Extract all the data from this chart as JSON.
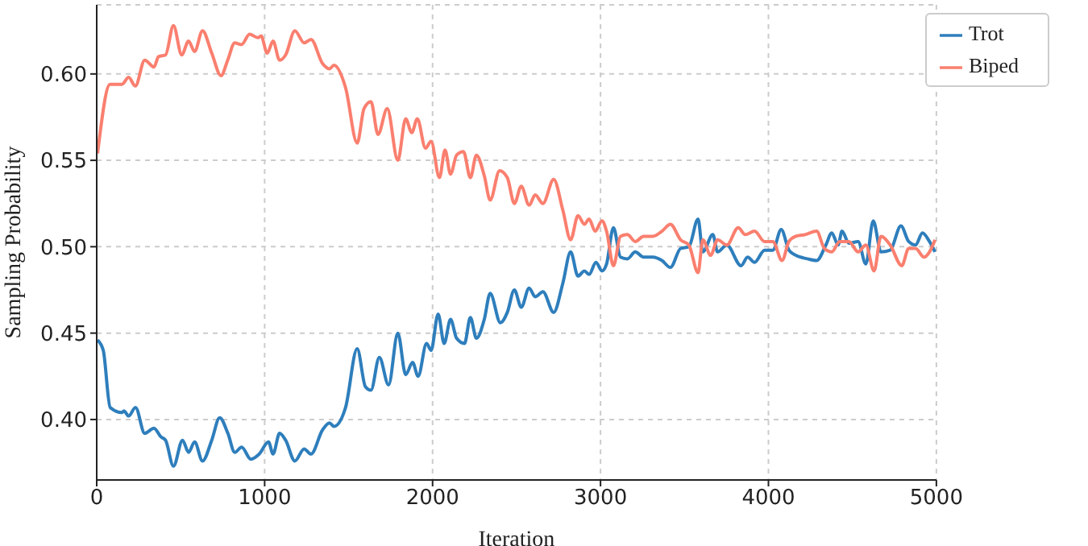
{
  "chart_data": {
    "type": "line",
    "xlabel": "Iteration",
    "ylabel": "Sampling Probability",
    "xlim": [
      0,
      5000
    ],
    "ylim": [
      0.365,
      0.64
    ],
    "xticks": [
      0,
      1000,
      2000,
      3000,
      4000,
      5000
    ],
    "yticks": [
      {
        "value": 0.4,
        "label": "0.40"
      },
      {
        "value": 0.45,
        "label": "0.45"
      },
      {
        "value": 0.5,
        "label": "0.50"
      },
      {
        "value": 0.55,
        "label": "0.55"
      },
      {
        "value": 0.6,
        "label": "0.60"
      }
    ],
    "grid": true,
    "legend": "top right",
    "marker": "none",
    "line_style": "solid",
    "series": [
      {
        "name": "Trot",
        "color": "#2e7ebc",
        "x": [
          5,
          39,
          80,
          150,
          162,
          190,
          231,
          286,
          341,
          382,
          410,
          457,
          511,
          547,
          583,
          630,
          685,
          732,
          781,
          822,
          863,
          918,
          968,
          1023,
          1050,
          1089,
          1125,
          1180,
          1235,
          1276,
          1345,
          1386,
          1413,
          1482,
          1551,
          1600,
          1633,
          1683,
          1738,
          1793,
          1840,
          1881,
          1914,
          1964,
          1991,
          2033,
          2069,
          2107,
          2143,
          2190,
          2225,
          2261,
          2308,
          2343,
          2404,
          2445,
          2487,
          2528,
          2575,
          2611,
          2657,
          2721,
          2776,
          2822,
          2866,
          2904,
          2932,
          2973,
          3009,
          3036,
          3077,
          3119,
          3160,
          3207,
          3256,
          3311,
          3366,
          3416,
          3477,
          3526,
          3581,
          3609,
          3669,
          3697,
          3752,
          3837,
          3876,
          3917,
          3977,
          4026,
          4076,
          4122,
          4163,
          4232,
          4287,
          4342,
          4377,
          4415,
          4438,
          4479,
          4534,
          4580,
          4624,
          4670,
          4725,
          4789,
          4835,
          4876,
          4917,
          4959,
          4992
        ],
        "values": [
          0.446,
          0.44,
          0.407,
          0.404,
          0.405,
          0.402,
          0.407,
          0.392,
          0.395,
          0.39,
          0.388,
          0.373,
          0.388,
          0.381,
          0.387,
          0.376,
          0.388,
          0.401,
          0.392,
          0.381,
          0.384,
          0.377,
          0.38,
          0.387,
          0.38,
          0.392,
          0.388,
          0.376,
          0.383,
          0.38,
          0.394,
          0.398,
          0.396,
          0.407,
          0.441,
          0.419,
          0.417,
          0.436,
          0.42,
          0.45,
          0.426,
          0.433,
          0.425,
          0.444,
          0.44,
          0.461,
          0.444,
          0.458,
          0.447,
          0.444,
          0.459,
          0.447,
          0.458,
          0.473,
          0.456,
          0.462,
          0.475,
          0.465,
          0.476,
          0.471,
          0.474,
          0.462,
          0.479,
          0.497,
          0.483,
          0.486,
          0.484,
          0.491,
          0.486,
          0.49,
          0.511,
          0.494,
          0.493,
          0.497,
          0.494,
          0.494,
          0.492,
          0.488,
          0.499,
          0.5,
          0.516,
          0.497,
          0.507,
          0.497,
          0.501,
          0.489,
          0.494,
          0.491,
          0.498,
          0.498,
          0.51,
          0.498,
          0.495,
          0.493,
          0.492,
          0.501,
          0.508,
          0.501,
          0.509,
          0.502,
          0.503,
          0.49,
          0.515,
          0.497,
          0.498,
          0.512,
          0.503,
          0.501,
          0.508,
          0.503,
          0.497
        ]
      },
      {
        "name": "Biped",
        "color": "#fa7f6f",
        "x": [
          5,
          80,
          150,
          190,
          230,
          286,
          341,
          368,
          410,
          457,
          506,
          547,
          583,
          630,
          685,
          740,
          780,
          822,
          863,
          910,
          960,
          979,
          1015,
          1050,
          1089,
          1125,
          1180,
          1235,
          1276,
          1345,
          1386,
          1413,
          1482,
          1551,
          1592,
          1633,
          1675,
          1730,
          1793,
          1840,
          1876,
          1909,
          1958,
          1991,
          2041,
          2074,
          2107,
          2143,
          2184,
          2225,
          2261,
          2308,
          2343,
          2399,
          2445,
          2487,
          2528,
          2575,
          2611,
          2657,
          2721,
          2776,
          2822,
          2866,
          2904,
          2932,
          2968,
          3009,
          3036,
          3077,
          3119,
          3160,
          3207,
          3256,
          3311,
          3366,
          3416,
          3477,
          3526,
          3581,
          3609,
          3656,
          3697,
          3752,
          3820,
          3862,
          3917,
          3977,
          4026,
          4081,
          4122,
          4163,
          4218,
          4287,
          4333,
          4377,
          4424,
          4479,
          4534,
          4580,
          4629,
          4670,
          4725,
          4794,
          4835,
          4876,
          4926,
          4959,
          4992
        ],
        "values": [
          0.554,
          0.594,
          0.594,
          0.598,
          0.593,
          0.608,
          0.604,
          0.61,
          0.611,
          0.628,
          0.611,
          0.619,
          0.613,
          0.625,
          0.612,
          0.599,
          0.608,
          0.618,
          0.617,
          0.623,
          0.621,
          0.622,
          0.612,
          0.619,
          0.608,
          0.611,
          0.625,
          0.618,
          0.62,
          0.606,
          0.603,
          0.605,
          0.592,
          0.56,
          0.58,
          0.584,
          0.565,
          0.58,
          0.55,
          0.574,
          0.566,
          0.574,
          0.557,
          0.561,
          0.54,
          0.556,
          0.542,
          0.553,
          0.555,
          0.54,
          0.553,
          0.541,
          0.527,
          0.544,
          0.54,
          0.525,
          0.535,
          0.524,
          0.53,
          0.525,
          0.539,
          0.521,
          0.504,
          0.518,
          0.513,
          0.516,
          0.509,
          0.515,
          0.509,
          0.489,
          0.506,
          0.507,
          0.503,
          0.506,
          0.506,
          0.509,
          0.513,
          0.504,
          0.501,
          0.485,
          0.504,
          0.495,
          0.504,
          0.501,
          0.511,
          0.507,
          0.509,
          0.503,
          0.503,
          0.492,
          0.503,
          0.506,
          0.507,
          0.509,
          0.499,
          0.497,
          0.503,
          0.503,
          0.497,
          0.501,
          0.486,
          0.506,
          0.501,
          0.489,
          0.499,
          0.499,
          0.494,
          0.497,
          0.504
        ]
      }
    ]
  }
}
